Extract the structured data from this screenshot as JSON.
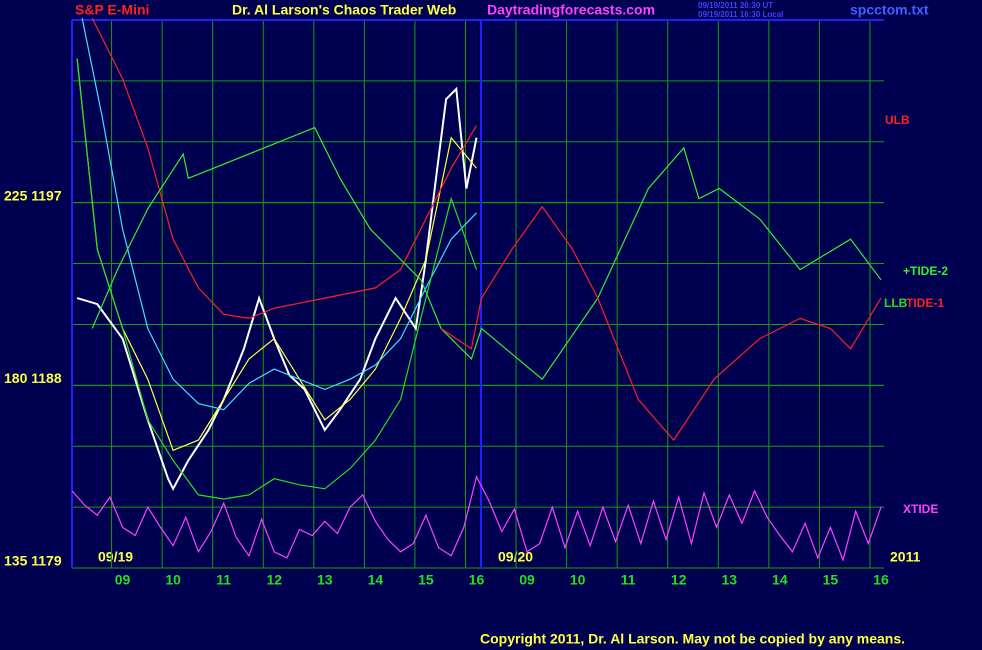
{
  "chart_data": {
    "type": "line",
    "title": "Dr. Al Larson's Chaos Trader Web",
    "instrument": "S&P E-Mini",
    "site": "Daytradingforecasts.com",
    "timestamps": [
      "09/19/2011 20:30 UT",
      "09/19/2011 16:30 Local"
    ],
    "file": "spcctom.txt",
    "copyright": "Copyright 2011, Dr. Al Larson. May not be copied by any means.",
    "date_labels": [
      "09/19",
      "09/20",
      "2011"
    ],
    "xlim": [
      -1,
      15.06
    ],
    "ylim": [
      1179,
      1206
    ],
    "xticks": [
      {
        "value": 0,
        "label": "09"
      },
      {
        "value": 1,
        "label": "10"
      },
      {
        "value": 2,
        "label": "11"
      },
      {
        "value": 3,
        "label": "12"
      },
      {
        "value": 4,
        "label": "13"
      },
      {
        "value": 5,
        "label": "14"
      },
      {
        "value": 6,
        "label": "15"
      },
      {
        "value": 7,
        "label": "16"
      },
      {
        "value": 8,
        "label": "09"
      },
      {
        "value": 9,
        "label": "10"
      },
      {
        "value": 10,
        "label": "11"
      },
      {
        "value": 11,
        "label": "12"
      },
      {
        "value": 12,
        "label": "13"
      },
      {
        "value": 13,
        "label": "14"
      },
      {
        "value": 14,
        "label": "15"
      },
      {
        "value": 15,
        "label": "16"
      }
    ],
    "yticks": [
      {
        "value": 1179,
        "label": "135 1179"
      },
      {
        "value": 1188,
        "label": "180 1188"
      },
      {
        "value": 1197,
        "label": "225 1197"
      }
    ],
    "ygrid": [
      1182,
      1185,
      1188,
      1191,
      1194,
      1197,
      1200,
      1203
    ],
    "grid": true,
    "grid_color": "#10a010",
    "background": "#000050",
    "series": [
      {
        "color": "#ffffff",
        "x": [
          -0.9,
          -0.5,
          0,
          0.5,
          0.9,
          1,
          1.3,
          1.7,
          2,
          2.4,
          2.7,
          3,
          3.3,
          3.6,
          4,
          4.3,
          4.7,
          5,
          5.4,
          5.8,
          6,
          6.2,
          6.4,
          6.6,
          6.8,
          7
        ],
        "values": [
          1192.3,
          1192.0,
          1190.3,
          1186.3,
          1183.4,
          1182.9,
          1184.3,
          1185.8,
          1187.3,
          1189.8,
          1192.3,
          1190.3,
          1188.5,
          1187.8,
          1185.8,
          1186.8,
          1188.3,
          1190.3,
          1192.3,
          1190.8,
          1194.2,
          1198.2,
          1202.1,
          1202.6,
          1197.7,
          1200.2
        ]
      },
      {
        "color": "#ffff40",
        "x": [
          -0.9,
          -0.5,
          0,
          0.5,
          1,
          1.5,
          2,
          2.5,
          3,
          3.5,
          4,
          4.5,
          5,
          5.5,
          6,
          6.5,
          7
        ],
        "values": [
          1204.1,
          1194.7,
          1190.8,
          1188.3,
          1184.8,
          1185.3,
          1187.3,
          1189.3,
          1190.3,
          1188.3,
          1186.3,
          1187.3,
          1188.8,
          1191.3,
          1194.2,
          1200.2,
          1198.7
        ]
      },
      {
        "color": "#40e0ff",
        "x": [
          -0.8,
          -0.4,
          0,
          0.5,
          1,
          1.5,
          2,
          2.5,
          3,
          3.5,
          4,
          4.5,
          5,
          5.5,
          6,
          6.5,
          7
        ],
        "values": [
          1206.1,
          1201.2,
          1195.7,
          1190.8,
          1188.3,
          1187.1,
          1186.8,
          1188.1,
          1188.8,
          1188.3,
          1187.8,
          1188.3,
          1189.0,
          1190.3,
          1192.8,
          1195.2,
          1196.5
        ]
      },
      {
        "name": "ULB",
        "color": "#ff2020",
        "x": [
          -0.6,
          0,
          0.5,
          1,
          1.5,
          2,
          2.5,
          3,
          4,
          5,
          5.5,
          6,
          6.5,
          7
        ],
        "values": [
          1206.1,
          1203.1,
          1199.7,
          1195.2,
          1192.8,
          1191.5,
          1191.3,
          1191.8,
          1192.3,
          1192.8,
          1193.7,
          1196.2,
          1198.7,
          1200.8
        ]
      },
      {
        "name": "LLB",
        "color": "#20e020",
        "x": [
          -0.9,
          -0.5,
          0,
          0.5,
          1,
          1.5,
          2,
          2.5,
          3,
          3.5,
          4,
          4.5,
          5,
          5.5,
          6,
          6.5,
          7
        ],
        "values": [
          1204.1,
          1194.7,
          1190.8,
          1186.3,
          1184.3,
          1182.6,
          1182.4,
          1182.6,
          1183.4,
          1183.1,
          1182.9,
          1183.9,
          1185.3,
          1187.3,
          1192.3,
          1197.2,
          1193.7
        ]
      },
      {
        "name": "+TIDE-2",
        "color": "#30f030",
        "x": [
          -0.6,
          -0.1,
          0.5,
          1.2,
          1.3,
          1.8,
          2.8,
          3.8,
          4.3,
          4.9,
          5.9,
          6.3,
          6.9,
          7.1,
          8.3,
          9.4,
          10.4,
          11.1,
          11.4,
          11.8,
          12.6,
          13.4,
          14.4,
          15
        ],
        "values": [
          1190.8,
          1193.7,
          1196.7,
          1199.4,
          1198.2,
          1198.7,
          1199.7,
          1200.7,
          1198.2,
          1195.7,
          1193.2,
          1190.8,
          1189.3,
          1190.8,
          1188.3,
          1192.3,
          1197.7,
          1199.7,
          1197.2,
          1197.7,
          1196.2,
          1193.7,
          1195.2,
          1193.2
        ]
      },
      {
        "name": "TIDE-1",
        "color": "#ff2020",
        "x": [
          6.3,
          6.9,
          7.1,
          7.7,
          8.3,
          8.9,
          9.4,
          10.2,
          10.9,
          11.7,
          12.6,
          13.4,
          14.0,
          14.4,
          15
        ],
        "values": [
          1190.8,
          1189.8,
          1192.3,
          1194.7,
          1196.8,
          1194.7,
          1192.3,
          1187.3,
          1185.3,
          1188.3,
          1190.3,
          1191.3,
          1190.8,
          1189.8,
          1192.3
        ]
      },
      {
        "name": "XTIDE",
        "color": "#ff40ff",
        "x": [
          -1,
          -0.75,
          -0.5,
          -0.25,
          0,
          0.25,
          0.5,
          0.75,
          1,
          1.25,
          1.5,
          1.75,
          2,
          2.25,
          2.5,
          2.75,
          3,
          3.25,
          3.5,
          3.75,
          4,
          4.25,
          4.5,
          4.75,
          5,
          5.25,
          5.5,
          5.75,
          6,
          6.25,
          6.5,
          6.75,
          7,
          7.25,
          7.5,
          7.75,
          8,
          8.25,
          8.5,
          8.75,
          9,
          9.25,
          9.5,
          9.75,
          10,
          10.25,
          10.5,
          10.75,
          11,
          11.25,
          11.5,
          11.75,
          12,
          12.25,
          12.5,
          12.75,
          13,
          13.25,
          13.5,
          13.75,
          14,
          14.25,
          14.5,
          14.75,
          15
        ],
        "values": [
          1182.8,
          1182.1,
          1181.6,
          1182.5,
          1181.0,
          1180.6,
          1182.0,
          1181.0,
          1180.1,
          1181.5,
          1179.8,
          1180.8,
          1182.2,
          1180.5,
          1179.6,
          1181.4,
          1179.8,
          1179.5,
          1180.9,
          1180.6,
          1181.3,
          1180.7,
          1182.0,
          1182.6,
          1181.3,
          1180.4,
          1179.8,
          1180.2,
          1181.6,
          1180.0,
          1179.6,
          1181.0,
          1183.5,
          1182.3,
          1180.8,
          1181.9,
          1179.8,
          1180.2,
          1182.0,
          1180.0,
          1181.8,
          1180.1,
          1182.0,
          1180.3,
          1182.1,
          1180.2,
          1182.3,
          1180.4,
          1182.5,
          1180.2,
          1182.7,
          1181.0,
          1182.6,
          1181.2,
          1182.8,
          1181.5,
          1180.6,
          1179.8,
          1181.2,
          1179.5,
          1181.0,
          1179.4,
          1181.8,
          1180.2,
          1182.0
        ]
      }
    ]
  }
}
